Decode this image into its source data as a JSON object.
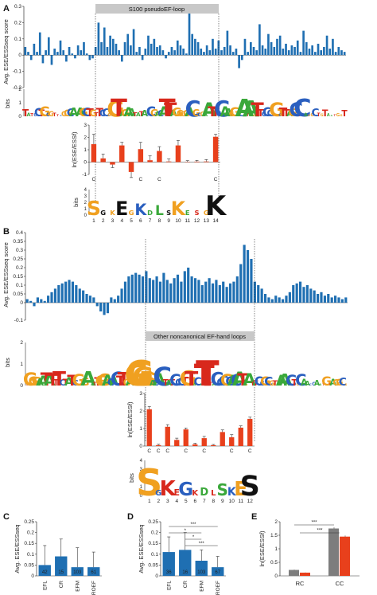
{
  "colors": {
    "blue": "#1f6fb2",
    "red": "#e8401c",
    "gray": "#7d7d7d",
    "banner": "#c8c8c8",
    "logo_green": "#3aa83a",
    "logo_red": "#d8281c",
    "logo_blue": "#2a5fbf",
    "logo_orange": "#f0a020"
  },
  "panels": {
    "A": {
      "letter": "A",
      "ylabel": "Avg. ESE/ESSseq score",
      "banner": "S100 pseudoEF-loop",
      "logo_ylabel": "bits"
    },
    "B": {
      "letter": "B",
      "ylabel": "Avg. ESE/ESSseq score",
      "banner": "Other noncanonical EF-hand loops",
      "logo_ylabel": "bits"
    },
    "C": {
      "letter": "C"
    },
    "D": {
      "letter": "D"
    },
    "E": {
      "letter": "E"
    }
  },
  "chart_data": [
    {
      "id": "A-top",
      "type": "bar",
      "ylabel": "Avg. ESE/ESSseq score",
      "ylim": [
        -0.2,
        0.3
      ],
      "yticks": [
        -0.2,
        -0.1,
        0,
        0.1,
        0.2,
        0.3
      ],
      "annotation": "S100 pseudoEF-loop",
      "values": [
        0.05,
        0.02,
        -0.03,
        0.07,
        0.02,
        0.14,
        -0.05,
        0.03,
        0.11,
        -0.06,
        0.04,
        0.02,
        0.09,
        0.03,
        -0.04,
        0.05,
        0.01,
        -0.02,
        0.06,
        0.03,
        0.08,
        0.01,
        -0.03,
        -0.02,
        0.05,
        0.2,
        0.08,
        0.17,
        0.05,
        0.12,
        0.1,
        0.07,
        0.03,
        -0.04,
        0.08,
        0.13,
        0.06,
        0.16,
        0.02,
        0.05,
        -0.03,
        0.04,
        0.12,
        0.07,
        0.1,
        0.05,
        0.06,
        0.03,
        -0.02,
        0.02,
        0.05,
        0.03,
        0.09,
        0.06,
        0.04,
        0.01,
        0.27,
        0.13,
        0.1,
        0.08,
        0.04,
        0.02,
        0.06,
        0.03,
        0.1,
        0.04,
        0.09,
        0.03,
        0.05,
        0.15,
        0.06,
        0.02,
        0.04,
        -0.08,
        -0.03,
        0.1,
        0.02,
        0.08,
        0.05,
        0.03,
        0.19,
        0.06,
        0.04,
        0.13,
        0.08,
        0.05,
        0.1,
        0.12,
        0.04,
        0.07,
        0.03,
        0.06,
        0.05,
        0.09,
        0.02,
        0.15,
        0.08,
        0.04,
        0.06,
        0.02,
        0.07,
        0.03,
        0.05,
        0.12,
        0.04,
        0.1,
        0.02,
        0.05,
        0.03,
        0.02
      ]
    },
    {
      "id": "A-inset",
      "type": "bar",
      "ylabel": "ln(ESE/ESSf)",
      "ylim": [
        -1,
        3
      ],
      "yticks": [
        -1,
        0,
        1,
        2,
        3
      ],
      "categories": [
        "1",
        "2",
        "3",
        "4",
        "5",
        "6",
        "7",
        "8",
        "9",
        "10",
        "11",
        "12",
        "13",
        "14"
      ],
      "values": [
        1.45,
        0.3,
        -0.2,
        1.35,
        -0.8,
        1.05,
        0.15,
        0.9,
        0.05,
        1.35,
        0.02,
        0.04,
        0.05,
        2.05
      ],
      "errors": [
        0.8,
        0.35,
        0.25,
        0.25,
        0.45,
        0.55,
        0.35,
        0.35,
        0.2,
        0.4,
        0.1,
        0.1,
        0.15,
        0.2
      ],
      "marks": [
        "C",
        "",
        "",
        "",
        "",
        "C",
        "",
        "C",
        "",
        "",
        "",
        "",
        "",
        "C"
      ],
      "logo_ylabel": "bits",
      "logo_yticks": [
        0,
        1,
        2,
        3,
        4
      ]
    },
    {
      "id": "B-top",
      "type": "bar",
      "ylabel": "Avg. ESE/ESSseq score",
      "ylim": [
        -0.1,
        0.4
      ],
      "yticks": [
        -0.1,
        0,
        0.05,
        0.1,
        0.15,
        0.2,
        0.25,
        0.3,
        0.35,
        0.4
      ],
      "annotation": "Other noncanonical EF-hand loops",
      "values": [
        0.02,
        0.01,
        -0.02,
        0.03,
        0.02,
        0.01,
        0.04,
        0.06,
        0.08,
        0.1,
        0.11,
        0.12,
        0.13,
        0.12,
        0.1,
        0.08,
        0.07,
        0.05,
        0.04,
        0.03,
        -0.02,
        -0.05,
        -0.07,
        -0.06,
        0.03,
        0.02,
        0.04,
        0.08,
        0.12,
        0.15,
        0.16,
        0.17,
        0.16,
        0.15,
        0.18,
        0.14,
        0.13,
        0.15,
        0.12,
        0.17,
        0.13,
        0.11,
        0.14,
        0.16,
        0.12,
        0.18,
        0.2,
        0.15,
        0.14,
        0.13,
        0.1,
        0.12,
        0.14,
        0.11,
        0.13,
        0.1,
        0.12,
        0.09,
        0.11,
        0.12,
        0.15,
        0.22,
        0.33,
        0.3,
        0.25,
        0.12,
        0.1,
        0.08,
        0.05,
        0.03,
        0.02,
        0.04,
        0.03,
        0.02,
        0.04,
        0.06,
        0.1,
        0.11,
        0.12,
        0.09,
        0.1,
        0.08,
        0.07,
        0.05,
        0.06,
        0.04,
        0.05,
        0.03,
        0.04,
        0.03,
        0.02,
        0.03
      ]
    },
    {
      "id": "B-inset",
      "type": "bar",
      "ylabel": "ln(ESE/ESSf)",
      "ylim": [
        0,
        3
      ],
      "yticks": [
        0,
        1,
        2,
        3
      ],
      "categories": [
        "1",
        "2",
        "3",
        "4",
        "5",
        "6",
        "7",
        "8",
        "9",
        "10",
        "11",
        "12"
      ],
      "values": [
        2.1,
        0.05,
        1.1,
        0.35,
        0.95,
        0.1,
        0.45,
        0.05,
        0.8,
        0.5,
        1.05,
        1.55
      ],
      "errors": [
        0.15,
        0.05,
        0.12,
        0.1,
        0.08,
        0.06,
        0.1,
        0.04,
        0.12,
        0.15,
        0.1,
        0.1
      ],
      "marks": [
        "C",
        "C",
        "C",
        "",
        "C",
        "",
        "C",
        "",
        "",
        "C",
        "",
        "C"
      ],
      "logo_ylabel": "bits",
      "logo_yticks": [
        0,
        1,
        2,
        3,
        4
      ]
    },
    {
      "id": "C",
      "type": "bar",
      "ylabel": "Avg. ESE/ESSseq",
      "ylim": [
        0,
        0.25
      ],
      "yticks": [
        0,
        0.05,
        0.1,
        0.15,
        0.2,
        0.25
      ],
      "categories": [
        "EFL",
        "CR",
        "EFM",
        "ROEF"
      ],
      "values": [
        0.05,
        0.09,
        0.04,
        0.04
      ],
      "errors": [
        0.09,
        0.08,
        0.09,
        0.07
      ],
      "bar_labels": [
        "42",
        "15",
        "103",
        "61"
      ]
    },
    {
      "id": "D",
      "type": "bar",
      "ylabel": "Avg. ESE/ESSseq",
      "ylim": [
        0,
        0.25
      ],
      "yticks": [
        0,
        0.05,
        0.1,
        0.15,
        0.2,
        0.25
      ],
      "categories": [
        "EFL",
        "CR",
        "EFM",
        "ROEF"
      ],
      "values": [
        0.11,
        0.12,
        0.07,
        0.04
      ],
      "errors": [
        0.07,
        0.08,
        0.05,
        0.05
      ],
      "bar_labels": [
        "36",
        "16",
        "103",
        "67"
      ],
      "significance": [
        {
          "from": 0,
          "to": 3,
          "label": "***"
        },
        {
          "from": 0,
          "to": 2,
          "label": "*"
        },
        {
          "from": 1,
          "to": 2,
          "label": "*"
        },
        {
          "from": 1,
          "to": 3,
          "label": "***"
        }
      ]
    },
    {
      "id": "E",
      "type": "bar",
      "ylabel": "ln(ESE/ESSf)",
      "ylim": [
        0,
        2
      ],
      "yticks": [
        0,
        0.5,
        1,
        1.5,
        2
      ],
      "categories": [
        "RC",
        "CC"
      ],
      "series": [
        {
          "values": [
            0.22,
            1.75
          ]
        },
        {
          "values": [
            0.12,
            1.45
          ]
        }
      ],
      "errors": [
        [
          0.01,
          0.04
        ],
        [
          0.01,
          0.04
        ]
      ],
      "significance": [
        {
          "label": "***"
        },
        {
          "label": "***"
        }
      ]
    }
  ]
}
